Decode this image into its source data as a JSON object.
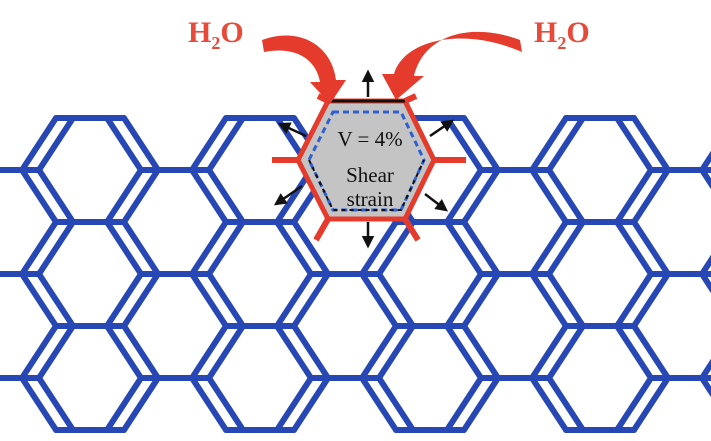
{
  "labels": {
    "water_left": "H",
    "water_left_sub": "2",
    "water_left_tail": "O",
    "water_right": "H",
    "water_right_sub": "2",
    "water_right_tail": "O",
    "volume_text": "V = 4%",
    "shear_line1": "Shear",
    "shear_line2": "strain"
  },
  "colors": {
    "lattice": "#2748b4",
    "water_arrow": "#e43b2c",
    "water_label": "#e84a3a",
    "expanded_cell_fill": "#c4c4c4",
    "expanded_cell_edge": "#e43b2c",
    "original_cell_outline": "#2f5fd0"
  }
}
